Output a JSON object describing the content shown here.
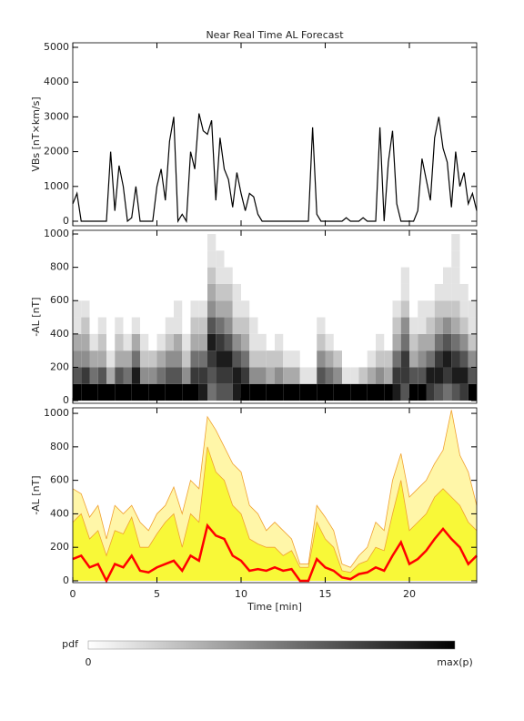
{
  "chart_data": [
    {
      "type": "line",
      "title": "Near Real Time AL Forecast",
      "ylabel": "VBs [nT×km/s]",
      "color": "#000000",
      "xlim": [
        0,
        24
      ],
      "ylim": [
        -131,
        5131
      ],
      "yticks": [
        0,
        1000,
        2000,
        3000,
        4000,
        5000
      ],
      "x": [
        0,
        0.25,
        0.5,
        0.75,
        1,
        1.25,
        1.5,
        1.75,
        2,
        2.25,
        2.5,
        2.75,
        3,
        3.25,
        3.5,
        3.75,
        4,
        4.25,
        4.5,
        4.75,
        5,
        5.25,
        5.5,
        5.75,
        6,
        6.25,
        6.5,
        6.75,
        7,
        7.25,
        7.5,
        7.75,
        8,
        8.25,
        8.5,
        8.75,
        9,
        9.25,
        9.5,
        9.75,
        10,
        10.25,
        10.5,
        10.75,
        11,
        11.25,
        11.5,
        11.75,
        12,
        12.25,
        12.5,
        12.75,
        13,
        13.25,
        13.5,
        13.75,
        14,
        14.25,
        14.5,
        14.75,
        15,
        15.25,
        15.5,
        15.75,
        16,
        16.25,
        16.5,
        16.75,
        17,
        17.25,
        17.5,
        17.75,
        18,
        18.25,
        18.5,
        18.75,
        19,
        19.25,
        19.5,
        19.75,
        20,
        20.25,
        20.5,
        20.75,
        21,
        21.25,
        21.5,
        21.75,
        22,
        22.25,
        22.5,
        22.75,
        23,
        23.25,
        23.5,
        23.75,
        24
      ],
      "values": [
        500,
        800,
        0,
        0,
        0,
        0,
        0,
        0,
        0,
        2000,
        300,
        1600,
        1000,
        0,
        100,
        1000,
        0,
        0,
        0,
        0,
        1000,
        1500,
        600,
        2300,
        3000,
        0,
        200,
        0,
        2000,
        1500,
        3100,
        2600,
        2500,
        2900,
        600,
        2400,
        1500,
        1200,
        400,
        1400,
        800,
        300,
        800,
        700,
        200,
        0,
        0,
        0,
        0,
        0,
        0,
        0,
        0,
        0,
        0,
        0,
        0,
        2700,
        200,
        0,
        0,
        0,
        0,
        0,
        0,
        100,
        0,
        0,
        0,
        100,
        0,
        0,
        0,
        2700,
        0,
        1700,
        2600,
        500,
        0,
        0,
        0,
        0,
        300,
        1800,
        1200,
        600,
        2400,
        3000,
        2100,
        1700,
        400,
        2000,
        1000,
        1400,
        500,
        800,
        300
      ]
    },
    {
      "type": "heatmap",
      "ylabel": "-AL [nT]",
      "xlim": [
        0,
        24
      ],
      "ylim": [
        -16,
        1022
      ],
      "yticks": [
        0,
        200,
        400,
        600,
        800,
        1000
      ],
      "xbins": [
        0,
        0.5,
        1,
        1.5,
        2,
        2.5,
        3,
        3.5,
        4,
        4.5,
        5,
        5.5,
        6,
        6.5,
        7,
        7.5,
        8,
        8.5,
        9,
        9.5,
        10,
        10.5,
        11,
        11.5,
        12,
        12.5,
        13,
        13.5,
        14,
        14.5,
        15,
        15.5,
        16,
        16.5,
        17,
        17.5,
        18,
        18.5,
        19,
        19.5,
        20,
        20.5,
        21,
        21.5,
        22,
        22.5,
        23,
        23.5,
        24
      ],
      "ybins": [
        0,
        100,
        200,
        300,
        400,
        500,
        600,
        700,
        800,
        900,
        1000
      ],
      "z": [
        [
          9,
          6,
          4,
          3,
          1,
          1,
          0,
          0,
          0,
          0
        ],
        [
          9,
          7,
          4,
          3,
          2,
          1,
          0,
          0,
          0,
          0
        ],
        [
          9,
          5,
          3,
          1,
          0,
          0,
          0,
          0,
          0,
          0
        ],
        [
          9,
          6,
          3,
          2,
          1,
          0,
          0,
          0,
          0,
          0
        ],
        [
          9,
          3,
          1,
          0,
          0,
          0,
          0,
          0,
          0,
          0
        ],
        [
          9,
          6,
          3,
          2,
          1,
          0,
          0,
          0,
          0,
          0
        ],
        [
          9,
          5,
          3,
          1,
          0,
          0,
          0,
          0,
          0,
          0
        ],
        [
          9,
          8,
          5,
          3,
          1,
          0,
          0,
          0,
          0,
          0
        ],
        [
          9,
          4,
          2,
          1,
          0,
          0,
          0,
          0,
          0,
          0
        ],
        [
          9,
          4,
          2,
          0,
          0,
          0,
          0,
          0,
          0,
          0
        ],
        [
          9,
          5,
          3,
          1,
          0,
          0,
          0,
          0,
          0,
          0
        ],
        [
          9,
          6,
          4,
          2,
          1,
          0,
          0,
          0,
          0,
          0
        ],
        [
          9,
          6,
          4,
          3,
          1,
          1,
          0,
          0,
          0,
          0
        ],
        [
          9,
          4,
          2,
          1,
          0,
          0,
          0,
          0,
          0,
          0
        ],
        [
          9,
          7,
          5,
          3,
          2,
          1,
          0,
          0,
          0,
          0
        ],
        [
          8,
          7,
          5,
          3,
          2,
          1,
          0,
          0,
          0,
          0
        ],
        [
          5,
          6,
          7,
          8,
          6,
          4,
          3,
          2,
          1,
          1
        ],
        [
          6,
          7,
          8,
          7,
          5,
          3,
          2,
          1,
          1,
          0
        ],
        [
          6,
          7,
          8,
          6,
          4,
          3,
          2,
          1,
          0,
          0
        ],
        [
          8,
          8,
          6,
          4,
          2,
          1,
          1,
          0,
          0,
          0
        ],
        [
          9,
          7,
          5,
          3,
          2,
          1,
          0,
          0,
          0,
          0
        ],
        [
          9,
          4,
          2,
          1,
          1,
          0,
          0,
          0,
          0,
          0
        ],
        [
          9,
          4,
          2,
          1,
          0,
          0,
          0,
          0,
          0,
          0
        ],
        [
          9,
          3,
          2,
          0,
          0,
          0,
          0,
          0,
          0,
          0
        ],
        [
          9,
          4,
          2,
          1,
          0,
          0,
          0,
          0,
          0,
          0
        ],
        [
          9,
          3,
          1,
          0,
          0,
          0,
          0,
          0,
          0,
          0
        ],
        [
          9,
          3,
          1,
          0,
          0,
          0,
          0,
          0,
          0,
          0
        ],
        [
          9,
          1,
          0,
          0,
          0,
          0,
          0,
          0,
          0,
          0
        ],
        [
          9,
          1,
          0,
          0,
          0,
          0,
          0,
          0,
          0,
          0
        ],
        [
          9,
          6,
          4,
          2,
          1,
          0,
          0,
          0,
          0,
          0
        ],
        [
          9,
          5,
          3,
          1,
          0,
          0,
          0,
          0,
          0,
          0
        ],
        [
          9,
          4,
          2,
          0,
          0,
          0,
          0,
          0,
          0,
          0
        ],
        [
          9,
          1,
          0,
          0,
          0,
          0,
          0,
          0,
          0,
          0
        ],
        [
          9,
          1,
          0,
          0,
          0,
          0,
          0,
          0,
          0,
          0
        ],
        [
          9,
          2,
          0,
          0,
          0,
          0,
          0,
          0,
          0,
          0
        ],
        [
          9,
          3,
          1,
          0,
          0,
          0,
          0,
          0,
          0,
          0
        ],
        [
          9,
          4,
          2,
          1,
          0,
          0,
          0,
          0,
          0,
          0
        ],
        [
          9,
          3,
          2,
          0,
          0,
          0,
          0,
          0,
          0,
          0
        ],
        [
          8,
          7,
          5,
          3,
          2,
          1,
          0,
          0,
          0,
          0
        ],
        [
          6,
          7,
          7,
          5,
          4,
          2,
          1,
          1,
          0,
          0
        ],
        [
          9,
          6,
          3,
          2,
          1,
          0,
          0,
          0,
          0,
          0
        ],
        [
          9,
          6,
          4,
          3,
          1,
          1,
          0,
          0,
          0,
          0
        ],
        [
          7,
          8,
          5,
          3,
          2,
          1,
          0,
          0,
          0,
          0
        ],
        [
          6,
          8,
          7,
          5,
          3,
          2,
          1,
          0,
          0,
          0
        ],
        [
          5,
          7,
          8,
          6,
          4,
          2,
          1,
          1,
          0,
          0
        ],
        [
          6,
          8,
          7,
          5,
          3,
          2,
          1,
          1,
          1,
          1
        ],
        [
          7,
          8,
          6,
          4,
          2,
          1,
          1,
          0,
          0,
          0
        ],
        [
          9,
          6,
          4,
          2,
          1,
          1,
          0,
          0,
          0,
          0
        ]
      ],
      "colorbar": {
        "label": "pdf",
        "min_label": "0",
        "max_label": "max(p)"
      }
    },
    {
      "type": "band",
      "ylabel": "-AL [nT]",
      "xlabel": "Time [min]",
      "xlim": [
        0,
        24
      ],
      "ylim": [
        -11,
        1033
      ],
      "xticks": [
        0,
        5,
        10,
        15,
        20
      ],
      "yticks": [
        0,
        200,
        400,
        600,
        800,
        1000
      ],
      "x": [
        0,
        0.5,
        1,
        1.5,
        2,
        2.5,
        3,
        3.5,
        4,
        4.5,
        5,
        5.5,
        6,
        6.5,
        7,
        7.5,
        8,
        8.5,
        9,
        9.5,
        10,
        10.5,
        11,
        11.5,
        12,
        12.5,
        13,
        13.5,
        14,
        14.5,
        15,
        15.5,
        16,
        16.5,
        17,
        17.5,
        18,
        18.5,
        19,
        19.5,
        20,
        20.5,
        21,
        21.5,
        22,
        22.5,
        23,
        23.5,
        24
      ],
      "series": [
        {
          "color": "#fff6a8",
          "line": "#f0a030",
          "values": [
            550,
            520,
            380,
            450,
            250,
            450,
            400,
            450,
            350,
            300,
            400,
            450,
            560,
            400,
            600,
            550,
            980,
            900,
            800,
            700,
            650,
            450,
            400,
            300,
            350,
            300,
            250,
            100,
            100,
            450,
            380,
            300,
            100,
            80,
            150,
            200,
            350,
            300,
            600,
            760,
            500,
            550,
            600,
            700,
            780,
            1020,
            750,
            650,
            450
          ]
        },
        {
          "color": "#f8f838",
          "line": "#f0a030",
          "values": [
            350,
            400,
            250,
            300,
            150,
            300,
            280,
            380,
            200,
            200,
            280,
            350,
            400,
            200,
            400,
            350,
            800,
            650,
            600,
            450,
            400,
            250,
            220,
            200,
            200,
            150,
            180,
            80,
            80,
            350,
            250,
            200,
            60,
            50,
            100,
            120,
            200,
            180,
            400,
            600,
            300,
            350,
            400,
            500,
            550,
            500,
            450,
            350,
            300
          ]
        },
        {
          "color": "#ff0000",
          "line": "#ff0000",
          "values": [
            130,
            150,
            80,
            100,
            0,
            100,
            80,
            150,
            60,
            50,
            80,
            100,
            120,
            60,
            150,
            120,
            330,
            270,
            250,
            150,
            120,
            60,
            70,
            60,
            80,
            60,
            70,
            0,
            0,
            130,
            80,
            60,
            20,
            10,
            40,
            50,
            80,
            60,
            150,
            230,
            100,
            130,
            180,
            250,
            310,
            250,
            200,
            100,
            150
          ]
        }
      ]
    }
  ]
}
